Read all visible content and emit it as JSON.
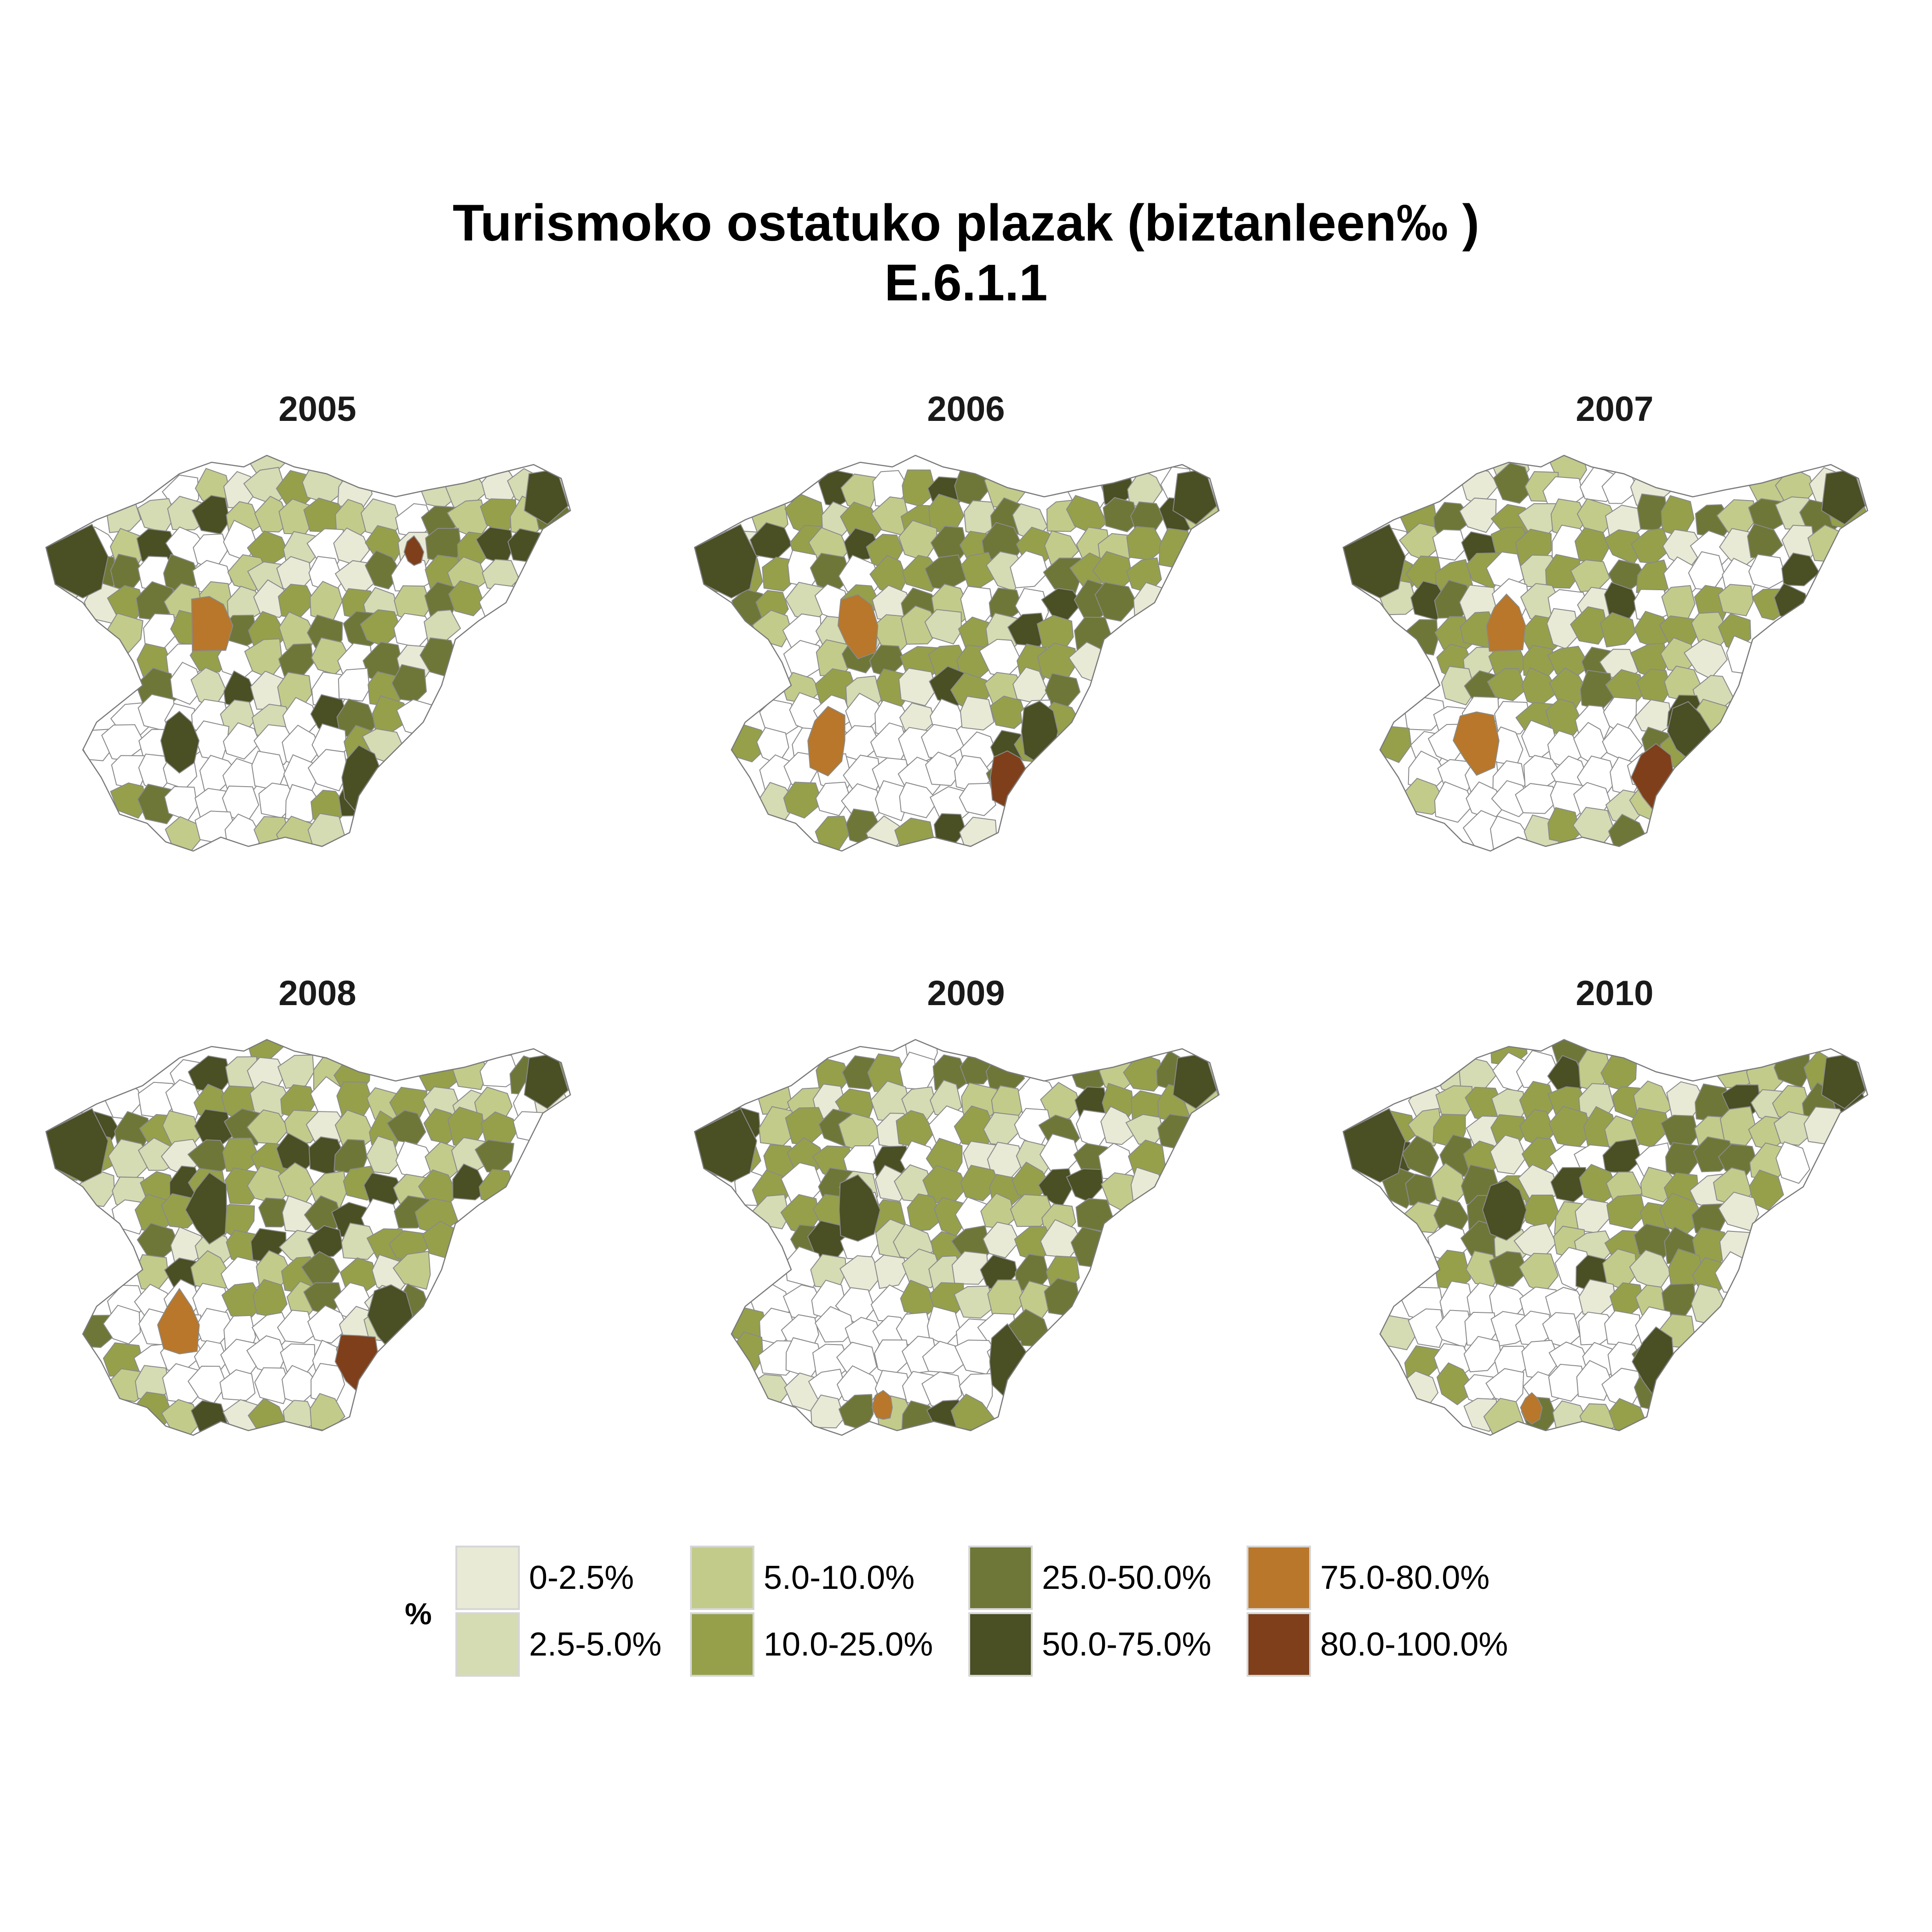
{
  "title": {
    "line1": "Turismoko ostatuko plazak (biztanleen‰ )",
    "line2": "E.6.1.1"
  },
  "panels": [
    {
      "year": "2005",
      "highlights": [
        {
          "class": 5,
          "region": "center"
        },
        {
          "class": 4,
          "region": "south-west"
        },
        {
          "class": 4,
          "region": "south-east"
        },
        {
          "class": 6,
          "region": "north-small"
        }
      ]
    },
    {
      "year": "2006",
      "highlights": [
        {
          "class": 5,
          "region": "center"
        },
        {
          "class": 5,
          "region": "south-west"
        },
        {
          "class": 6,
          "region": "south-east"
        },
        {
          "class": 4,
          "region": "south-east-2"
        }
      ]
    },
    {
      "year": "2007",
      "highlights": [
        {
          "class": 5,
          "region": "center"
        },
        {
          "class": 5,
          "region": "south-west"
        },
        {
          "class": 6,
          "region": "south-east"
        },
        {
          "class": 4,
          "region": "south-east-2"
        }
      ]
    },
    {
      "year": "2008",
      "highlights": [
        {
          "class": 4,
          "region": "center"
        },
        {
          "class": 5,
          "region": "south-west"
        },
        {
          "class": 6,
          "region": "south-east"
        },
        {
          "class": 4,
          "region": "south-east-2"
        }
      ]
    },
    {
      "year": "2009",
      "highlights": [
        {
          "class": 4,
          "region": "center"
        },
        {
          "class": 4,
          "region": "south-east"
        },
        {
          "class": 5,
          "region": "far-south"
        }
      ]
    },
    {
      "year": "2010",
      "highlights": [
        {
          "class": 4,
          "region": "center"
        },
        {
          "class": 4,
          "region": "south-east"
        },
        {
          "class": 5,
          "region": "far-south"
        }
      ]
    }
  ],
  "legend": {
    "title": "%",
    "classes": [
      {
        "label": "0-2.5%",
        "color": "#e8ead6"
      },
      {
        "label": "2.5-5.0%",
        "color": "#d5dbb3"
      },
      {
        "label": "5.0-10.0%",
        "color": "#c3cb8b"
      },
      {
        "label": "10.0-25.0%",
        "color": "#96a04a"
      },
      {
        "label": "25.0-50.0%",
        "color": "#6e7737"
      },
      {
        "label": "50.0-75.0%",
        "color": "#4a4f24"
      },
      {
        "label": "75.0-80.0%",
        "color": "#b8772a"
      },
      {
        "label": "80.0-100.0%",
        "color": "#7f3f1b"
      }
    ]
  }
}
